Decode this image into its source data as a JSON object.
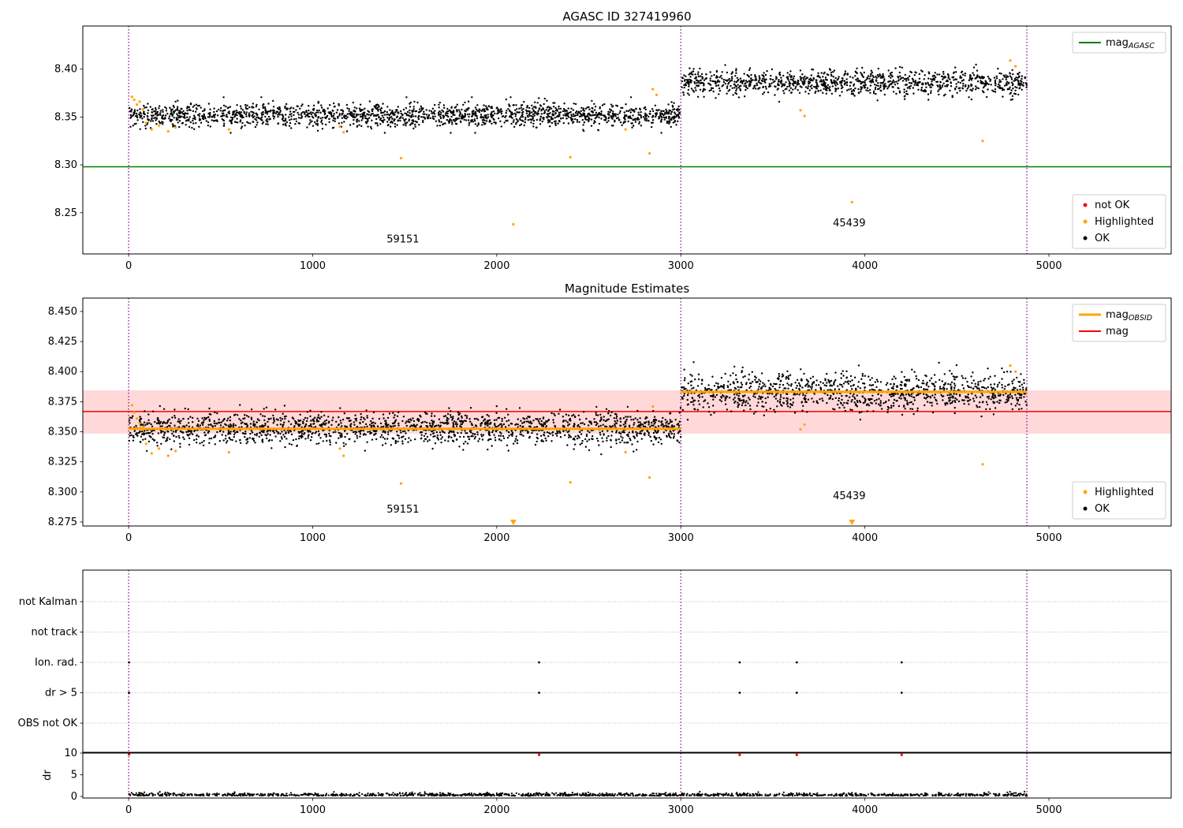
{
  "figure": {
    "background": "#ffffff",
    "xticks": {
      "values": [
        0,
        1000,
        2000,
        3000,
        4000,
        5000
      ],
      "labels": [
        "0",
        "1000",
        "2000",
        "3000",
        "4000",
        "5000"
      ]
    },
    "colors": {
      "ok_point": "#000000",
      "highlighted_point": "#ffa500",
      "not_ok_point": "#ff0000",
      "agasc_line": "#008000",
      "obsid_line": "#ffa500",
      "mag_line": "#ff0000",
      "mag_band": "#ffd9d9",
      "obsid_vline": "#800080",
      "grid_dotted": "#bbbbbb"
    }
  },
  "chart_data": [
    {
      "type": "scatter",
      "title": "AGASC ID 327419960",
      "xlim": [
        -249,
        5664
      ],
      "ylim": [
        8.207,
        8.445
      ],
      "yticks": {
        "values": [
          8.25,
          8.3,
          8.35,
          8.4
        ],
        "labels": [
          "8.25",
          "8.30",
          "8.35",
          "8.40"
        ]
      },
      "vlines": [
        0,
        3000,
        4880
      ],
      "agasc_mag": 8.298,
      "clusters": [
        {
          "obsid": "59151",
          "x_range": [
            0,
            3000
          ],
          "n": 1800,
          "mean": 8.352,
          "sigma": 0.006,
          "label_at": [
            1490,
            8.219
          ]
        },
        {
          "obsid": "45439",
          "x_range": [
            3005,
            4880
          ],
          "n": 1100,
          "mean": 8.386,
          "sigma": 0.0065,
          "label_at": [
            3915,
            8.236
          ]
        }
      ],
      "highlighted": [
        [
          18,
          8.371
        ],
        [
          30,
          8.368
        ],
        [
          45,
          8.363
        ],
        [
          60,
          8.366
        ],
        [
          78,
          8.358
        ],
        [
          95,
          8.344
        ],
        [
          125,
          8.337
        ],
        [
          165,
          8.341
        ],
        [
          215,
          8.335
        ],
        [
          255,
          8.339
        ],
        [
          545,
          8.337
        ],
        [
          1148,
          8.34
        ],
        [
          1168,
          8.334
        ],
        [
          1480,
          8.307
        ],
        [
          2090,
          8.238
        ],
        [
          2400,
          8.308
        ],
        [
          2700,
          8.337
        ],
        [
          2830,
          8.312
        ],
        [
          2848,
          8.379
        ],
        [
          2868,
          8.373
        ],
        [
          3650,
          8.357
        ],
        [
          3672,
          8.351
        ],
        [
          3930,
          8.261
        ],
        [
          4640,
          8.325
        ],
        [
          4790,
          8.409
        ],
        [
          4818,
          8.403
        ]
      ],
      "legend_lines": [
        {
          "label": "mag",
          "sub": "AGASC",
          "color_key": "agasc_line",
          "lw": 2
        }
      ],
      "legend_markers": [
        {
          "label": "not OK",
          "color_key": "not_ok_point"
        },
        {
          "label": "Highlighted",
          "color_key": "highlighted_point"
        },
        {
          "label": "OK",
          "color_key": "ok_point"
        }
      ]
    },
    {
      "type": "scatter",
      "title": "Magnitude Estimates",
      "xlim": [
        -249,
        5664
      ],
      "ylim": [
        8.2717,
        8.4611
      ],
      "yticks": {
        "values": [
          8.275,
          8.3,
          8.325,
          8.35,
          8.375,
          8.4,
          8.425,
          8.45
        ],
        "labels": [
          "8.275",
          "8.300",
          "8.325",
          "8.350",
          "8.375",
          "8.400",
          "8.425",
          "8.450"
        ]
      },
      "vlines": [
        0,
        3000,
        4880
      ],
      "mag": 8.3668,
      "mag_band": [
        8.3484,
        8.3845
      ],
      "obsid_segments": [
        {
          "x_range": [
            0,
            3000
          ],
          "y": 8.3525
        },
        {
          "x_range": [
            3000,
            4880
          ],
          "y": 8.3832
        }
      ],
      "clusters": [
        {
          "obsid": "59151",
          "x_range": [
            0,
            3000
          ],
          "n": 1800,
          "mean": 8.353,
          "sigma": 0.007,
          "label_at": [
            1490,
            8.2827
          ]
        },
        {
          "obsid": "45439",
          "x_range": [
            3005,
            4880
          ],
          "n": 1100,
          "mean": 8.383,
          "sigma": 0.008,
          "label_at": [
            3915,
            8.294
          ]
        }
      ],
      "highlighted": [
        [
          18,
          8.372
        ],
        [
          30,
          8.366
        ],
        [
          45,
          8.361
        ],
        [
          60,
          8.357
        ],
        [
          78,
          8.354
        ],
        [
          95,
          8.34
        ],
        [
          125,
          8.332
        ],
        [
          165,
          8.336
        ],
        [
          215,
          8.33
        ],
        [
          255,
          8.334
        ],
        [
          545,
          8.333
        ],
        [
          1148,
          8.336
        ],
        [
          1168,
          8.33
        ],
        [
          1480,
          8.307
        ],
        [
          2400,
          8.308
        ],
        [
          2700,
          8.333
        ],
        [
          2830,
          8.312
        ],
        [
          2848,
          8.371
        ],
        [
          3650,
          8.352
        ],
        [
          3672,
          8.356
        ],
        [
          4640,
          8.323
        ],
        [
          4790,
          8.405
        ],
        [
          4818,
          8.4
        ]
      ],
      "clipped_low_x": [
        2090,
        3930
      ],
      "legend_lines": [
        {
          "label": "mag",
          "sub": "OBSID",
          "color_key": "obsid_line",
          "lw": 3
        },
        {
          "label": "mag",
          "sub": "",
          "color_key": "mag_line",
          "lw": 2
        }
      ],
      "legend_markers": [
        {
          "label": "Highlighted",
          "color_key": "highlighted_point"
        },
        {
          "label": "OK",
          "color_key": "ok_point"
        }
      ]
    },
    {
      "type": "scatter",
      "flag_categories": [
        "not Kalman",
        "not track",
        "Ion. rad.",
        "dr > 5",
        "OBS not OK"
      ],
      "flags": [
        {
          "category": "Ion. rad.",
          "x": [
            2,
            2230,
            3320,
            3630,
            4200
          ]
        },
        {
          "category": "dr > 5",
          "x": [
            2,
            2230,
            3320,
            3630,
            4200
          ]
        }
      ],
      "dr": {
        "ylabel": "dr",
        "yticks": {
          "values": [
            0,
            5,
            10
          ],
          "labels": [
            "0",
            "5",
            "10"
          ]
        },
        "threshold": 10,
        "not_ok_points": [
          [
            2,
            9.7
          ],
          [
            2230,
            9.6
          ],
          [
            3320,
            9.6
          ],
          [
            3630,
            9.6
          ],
          [
            4200,
            9.6
          ]
        ],
        "ok_scatter": {
          "x_range": [
            0,
            4880
          ],
          "n": 1400,
          "base": 0.15,
          "sigma": 0.3
        }
      },
      "vlines": [
        0,
        3000,
        4880
      ]
    }
  ]
}
